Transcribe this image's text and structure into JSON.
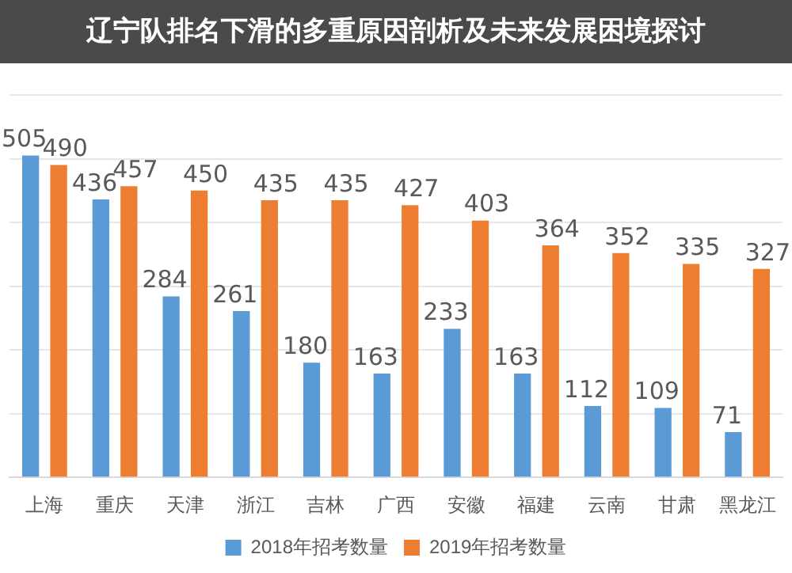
{
  "chart_data": {
    "type": "bar",
    "title": "辽宁队排名下滑的多重原因剖析及未来发展困境探讨",
    "categories": [
      "上海",
      "重庆",
      "天津",
      "浙江",
      "吉林",
      "广西",
      "安徽",
      "福建",
      "云南",
      "甘肃",
      "黑龙江"
    ],
    "series": [
      {
        "name": "2018年招考数量",
        "color": "#5b9bd5",
        "values": [
          505,
          436,
          284,
          261,
          180,
          163,
          233,
          163,
          112,
          109,
          71
        ]
      },
      {
        "name": "2019年招考数量",
        "color": "#ed7d31",
        "values": [
          490,
          457,
          450,
          435,
          435,
          427,
          403,
          364,
          352,
          335,
          327
        ]
      }
    ],
    "ylim": [
      0,
      600
    ],
    "yticks": [
      0,
      100,
      200,
      300,
      400,
      500,
      600
    ],
    "grid": "y",
    "tick_labels": "x",
    "legend": "bottom",
    "data_labels": true
  }
}
